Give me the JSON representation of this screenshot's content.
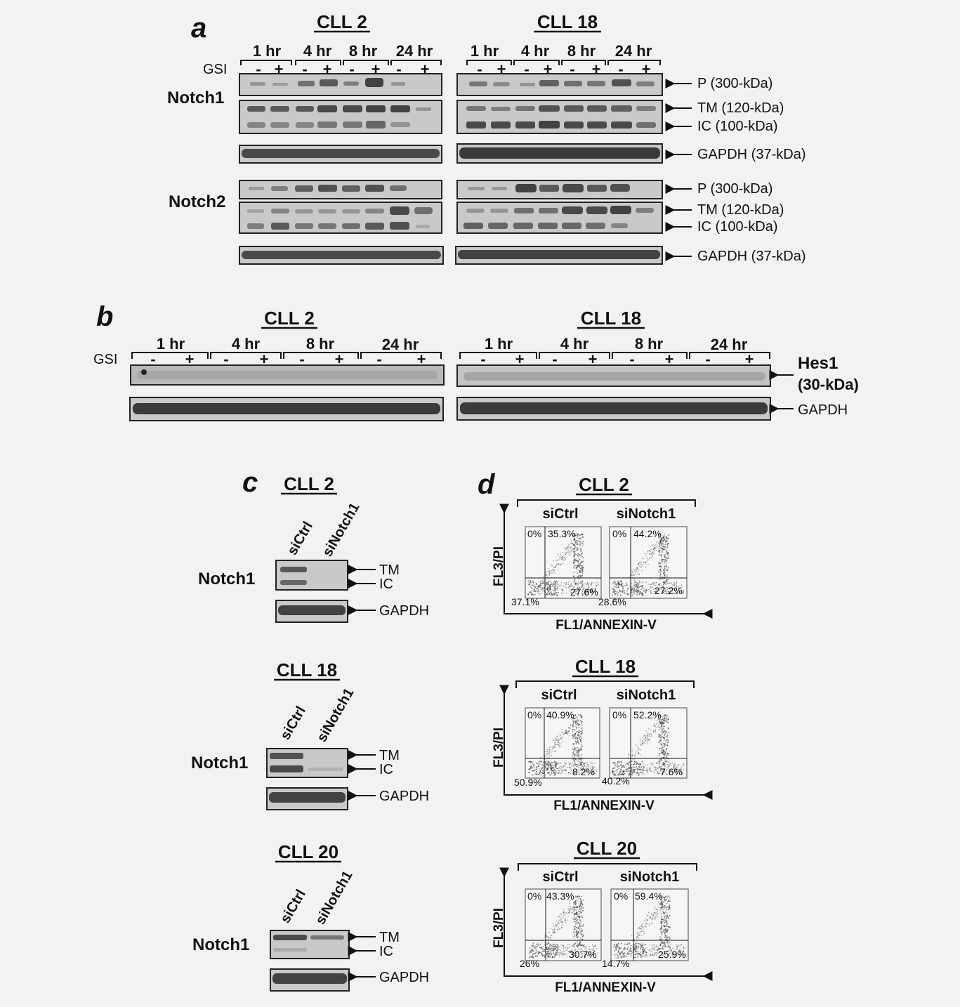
{
  "panel_a": {
    "letter": "a",
    "gsi_label": "GSI",
    "groups": [
      {
        "title": "CLL 2",
        "times": [
          "1 hr",
          "4 hr",
          "8 hr",
          "24 hr"
        ]
      },
      {
        "title": "CLL 18",
        "times": [
          "1 hr",
          "4 hr",
          "8 hr",
          "24 hr"
        ]
      }
    ],
    "signs": [
      "-",
      "+"
    ],
    "blocks": [
      {
        "protein": "Notch1",
        "labels": [
          "P (300-kDa)",
          "TM (120-kDa)",
          "IC (100-kDa)",
          "GAPDH (37-kDa)"
        ]
      },
      {
        "protein": "Notch2",
        "labels": [
          "P (300-kDa)",
          "TM (120-kDa)",
          "IC (100-kDa)",
          "GAPDH (37-kDa)"
        ]
      }
    ]
  },
  "panel_b": {
    "letter": "b",
    "gsi_label": "GSI",
    "groups": [
      {
        "title": "CLL 2",
        "times": [
          "1 hr",
          "4 hr",
          "8 hr",
          "24 hr"
        ]
      },
      {
        "title": "CLL 18",
        "times": [
          "1 hr",
          "4 hr",
          "8 hr",
          "24 hr"
        ]
      }
    ],
    "signs": [
      "-",
      "+"
    ],
    "labels": {
      "hes1": "Hes1",
      "hes1_kda": "(30-kDa)",
      "gapdh": "GAPDH"
    }
  },
  "panel_c": {
    "letter": "c",
    "lanes": [
      "siCtrl",
      "siNotch1"
    ],
    "protein": "Notch1",
    "band_labels": [
      "TM",
      "IC",
      "GAPDH"
    ],
    "samples": [
      "CLL 2",
      "CLL 18",
      "CLL 20"
    ]
  },
  "panel_d": {
    "letter": "d",
    "conditions": [
      "siCtrl",
      "siNotch1"
    ],
    "y_axis": "FL3/PI",
    "x_axis": "FL1/ANNEXIN-V",
    "samples": [
      {
        "title": "CLL 2",
        "plots": [
          {
            "ul": "0%",
            "ur": "35.3%",
            "lr": "27.6%",
            "ll": "37.1%"
          },
          {
            "ul": "0%",
            "ur": "44.2%",
            "lr": "27.2%",
            "ll": "28.6%"
          }
        ]
      },
      {
        "title": "CLL 18",
        "plots": [
          {
            "ul": "0%",
            "ur": "40.9%",
            "lr": "8.2%",
            "ll": "50.9%"
          },
          {
            "ul": "0%",
            "ur": "52.2%",
            "lr": "7.6%",
            "ll": "40.2%"
          }
        ]
      },
      {
        "title": "CLL 20",
        "plots": [
          {
            "ul": "0%",
            "ur": "43.3%",
            "lr": "30.7%",
            "ll": "26%"
          },
          {
            "ul": "0%",
            "ur": "59.4%",
            "lr": "25.9%",
            "ll": "14.7%"
          }
        ]
      }
    ]
  }
}
